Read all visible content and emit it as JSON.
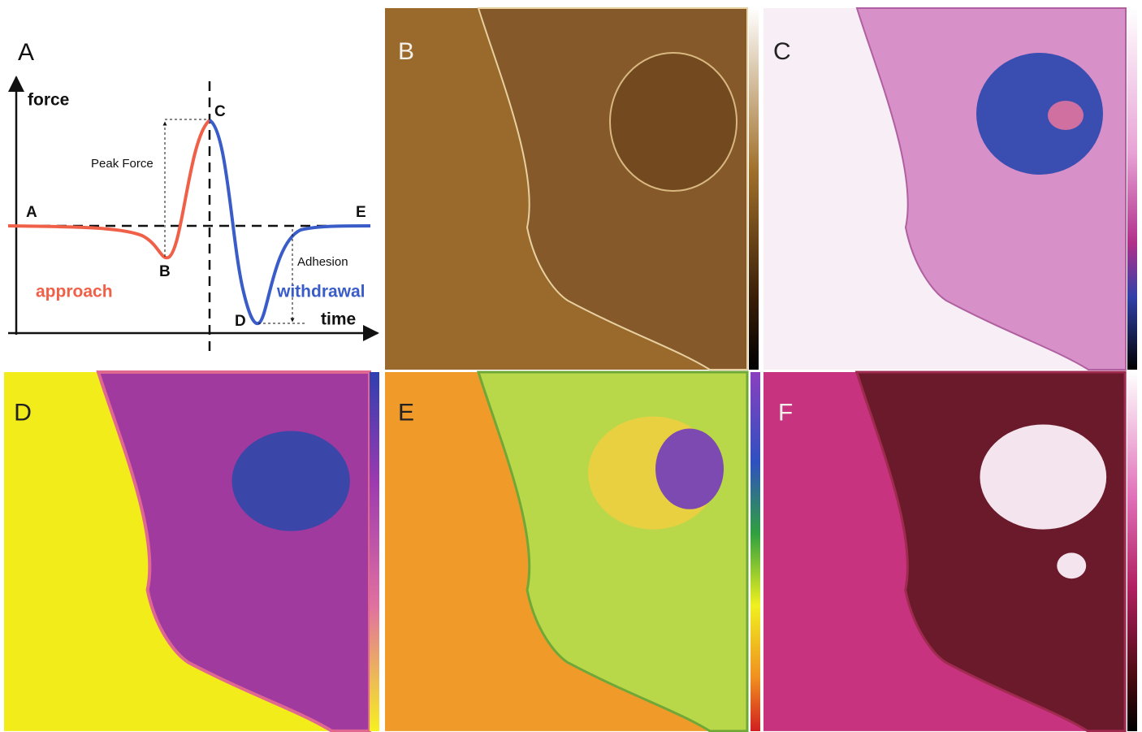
{
  "panel_a": {
    "label": "A",
    "y_axis": "force",
    "x_axis": "time",
    "points": [
      "A",
      "B",
      "C",
      "D",
      "E"
    ],
    "annotations": [
      "Peak Force",
      "Adhesion"
    ],
    "phases": [
      "approach",
      "withdrawal"
    ]
  },
  "panels": [
    {
      "label": "B"
    },
    {
      "label": "C"
    },
    {
      "label": "D"
    },
    {
      "label": "E"
    },
    {
      "label": "F"
    }
  ]
}
